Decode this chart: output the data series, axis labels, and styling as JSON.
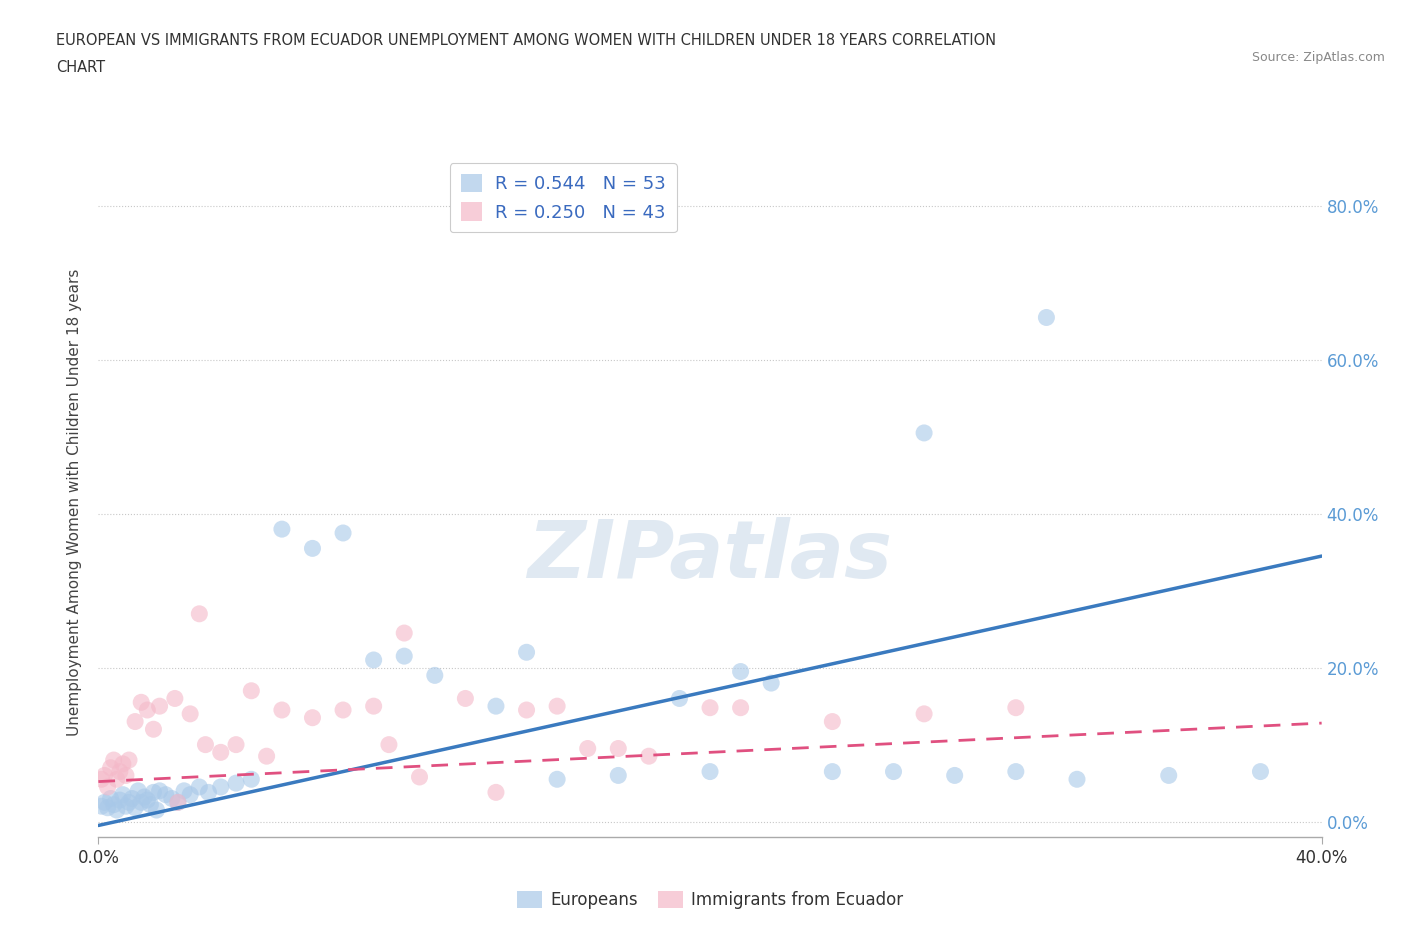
{
  "title_line1": "EUROPEAN VS IMMIGRANTS FROM ECUADOR UNEMPLOYMENT AMONG WOMEN WITH CHILDREN UNDER 18 YEARS CORRELATION",
  "title_line2": "CHART",
  "source": "Source: ZipAtlas.com",
  "ylabel": "Unemployment Among Women with Children Under 18 years",
  "xlim": [
    0.0,
    0.4
  ],
  "ylim": [
    -0.02,
    0.85
  ],
  "yticks": [
    0.0,
    0.2,
    0.4,
    0.6,
    0.8
  ],
  "xticks": [
    0.0,
    0.4
  ],
  "ytick_labels_right": [
    "0.0%",
    "20.0%",
    "40.0%",
    "60.0%",
    "80.0%"
  ],
  "xtick_labels": [
    "0.0%",
    "40.0%"
  ],
  "blue_color": "#a8c8e8",
  "pink_color": "#f4b8c8",
  "blue_line_color": "#3a7abf",
  "pink_line_color": "#e05080",
  "legend_blue_label": "R = 0.544   N = 53",
  "legend_pink_label": "R = 0.250   N = 43",
  "legend_europeans": "Europeans",
  "legend_ecuador": "Immigrants from Ecuador",
  "watermark": "ZIPatlas",
  "background_color": "#ffffff",
  "grid_color": "#c8c8c8",
  "blue_line_start_y": -0.005,
  "blue_line_end_y": 0.345,
  "pink_line_start_y": 0.052,
  "pink_line_end_y": 0.128,
  "blue_scatter_x": [
    0.001,
    0.002,
    0.003,
    0.004,
    0.005,
    0.006,
    0.007,
    0.008,
    0.009,
    0.01,
    0.011,
    0.012,
    0.013,
    0.014,
    0.015,
    0.016,
    0.017,
    0.018,
    0.019,
    0.02,
    0.022,
    0.024,
    0.026,
    0.028,
    0.03,
    0.033,
    0.036,
    0.04,
    0.045,
    0.05,
    0.06,
    0.07,
    0.08,
    0.09,
    0.1,
    0.11,
    0.13,
    0.15,
    0.17,
    0.2,
    0.22,
    0.24,
    0.26,
    0.28,
    0.3,
    0.32,
    0.35,
    0.38,
    0.14,
    0.19,
    0.21,
    0.27,
    0.31
  ],
  "blue_scatter_y": [
    0.02,
    0.025,
    0.018,
    0.03,
    0.022,
    0.015,
    0.028,
    0.035,
    0.02,
    0.025,
    0.03,
    0.018,
    0.04,
    0.025,
    0.032,
    0.028,
    0.022,
    0.038,
    0.015,
    0.04,
    0.035,
    0.03,
    0.025,
    0.04,
    0.035,
    0.045,
    0.038,
    0.045,
    0.05,
    0.055,
    0.38,
    0.355,
    0.375,
    0.21,
    0.215,
    0.19,
    0.15,
    0.055,
    0.06,
    0.065,
    0.18,
    0.065,
    0.065,
    0.06,
    0.065,
    0.055,
    0.06,
    0.065,
    0.22,
    0.16,
    0.195,
    0.505,
    0.655
  ],
  "pink_scatter_x": [
    0.001,
    0.002,
    0.003,
    0.004,
    0.005,
    0.006,
    0.007,
    0.008,
    0.009,
    0.01,
    0.012,
    0.014,
    0.016,
    0.018,
    0.02,
    0.025,
    0.03,
    0.035,
    0.04,
    0.045,
    0.05,
    0.06,
    0.07,
    0.08,
    0.09,
    0.1,
    0.12,
    0.15,
    0.18,
    0.21,
    0.14,
    0.16,
    0.24,
    0.27,
    0.3,
    0.13,
    0.2,
    0.17,
    0.095,
    0.055,
    0.033,
    0.026,
    0.105
  ],
  "pink_scatter_y": [
    0.055,
    0.06,
    0.045,
    0.07,
    0.08,
    0.055,
    0.065,
    0.075,
    0.06,
    0.08,
    0.13,
    0.155,
    0.145,
    0.12,
    0.15,
    0.16,
    0.14,
    0.1,
    0.09,
    0.1,
    0.17,
    0.145,
    0.135,
    0.145,
    0.15,
    0.245,
    0.16,
    0.15,
    0.085,
    0.148,
    0.145,
    0.095,
    0.13,
    0.14,
    0.148,
    0.038,
    0.148,
    0.095,
    0.1,
    0.085,
    0.27,
    0.025,
    0.058
  ]
}
